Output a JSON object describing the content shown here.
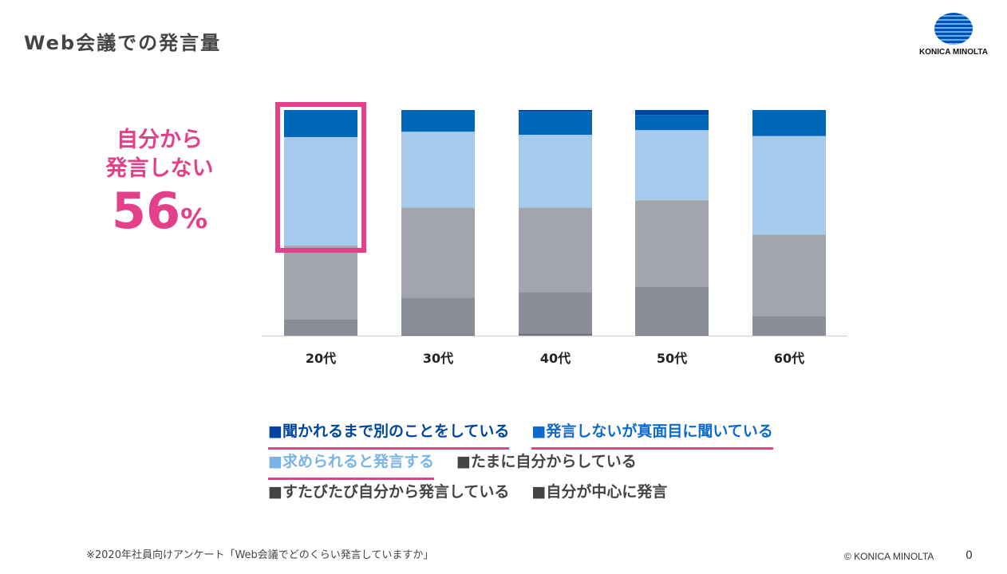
{
  "header": {
    "title": "Web会議での発言量",
    "logo_text": "KONICA MINOLTA"
  },
  "callout": {
    "line1": "自分から",
    "line2": "発言しない",
    "value": "56",
    "unit": "%"
  },
  "chart_data": {
    "type": "bar",
    "stacked": true,
    "percent_stacked": true,
    "categories": [
      "20代",
      "30代",
      "40代",
      "50代",
      "60代"
    ],
    "ylim": [
      0,
      100
    ],
    "grid": false,
    "legend_position": "bottom",
    "highlight_category": "20代",
    "series": [
      {
        "name": "自分が中心に発言",
        "color": "#6e7480",
        "values": [
          0,
          0.6,
          0.9,
          0.4,
          0
        ]
      },
      {
        "name": "すたびたび自分から発言している",
        "color": "#898d96",
        "values": [
          7.3,
          16.3,
          18.4,
          21.4,
          8.7
        ]
      },
      {
        "name": "たまに自分からしている",
        "color": "#a2a5ac",
        "values": [
          32.6,
          39.9,
          37.5,
          38.2,
          36.0
        ]
      },
      {
        "name": "求められると発言する",
        "color": "#a6caec",
        "values": [
          48.1,
          33.6,
          32.2,
          31.1,
          43.8
        ]
      },
      {
        "name": "発言しないが真面目に聞いている",
        "color": "#0066b8",
        "values": [
          12.0,
          9.3,
          10.2,
          6.7,
          11.5
        ]
      },
      {
        "name": "聞かれるまで別のことをしている",
        "color": "#0046a0",
        "values": [
          0,
          0.3,
          0.8,
          2.2,
          0
        ]
      }
    ]
  },
  "legend": {
    "rows": [
      [
        {
          "label": "■聞かれるまで別のことをしている",
          "color": "#0046a0",
          "underline": true
        },
        {
          "label": "■発言しないが真面目に聞いている",
          "color": "#0a6ad0",
          "underline": true
        }
      ],
      [
        {
          "label": "■求められると発言する",
          "color": "#7cb3e6",
          "underline": true
        },
        {
          "label": "■たまに自分からしている",
          "color": "#444444",
          "underline": false
        }
      ],
      [
        {
          "label": "■すたびたび自分から発言している",
          "color": "#444444",
          "underline": false
        },
        {
          "label": "■自分が中心に発言",
          "color": "#444444",
          "underline": false
        }
      ]
    ]
  },
  "footer": {
    "note": "※2020年社員向けアンケート「Web会議でどのくらい発言していますか」",
    "copyright": "© KONICA MINOLTA",
    "page": "0"
  },
  "colors": {
    "accent": "#e4408a"
  }
}
